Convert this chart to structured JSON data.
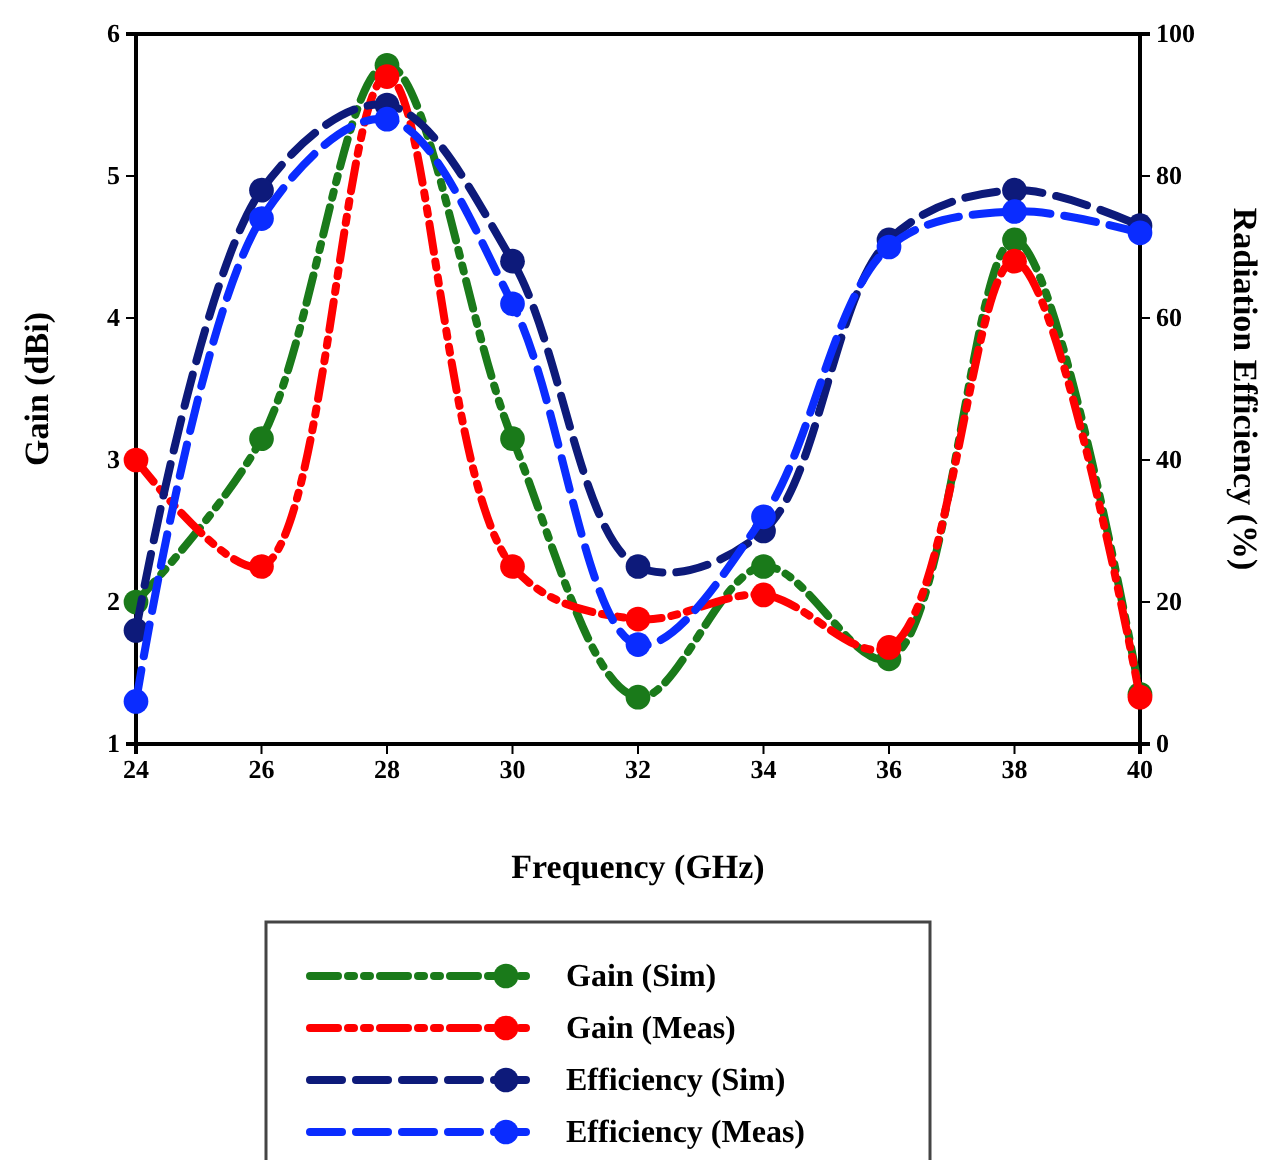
{
  "chart_data": {
    "type": "line",
    "xlabel": "Frequency (GHz)",
    "ylabel": "Gain (dBi)",
    "y2label": "Radiation Efficiency (%)",
    "x": [
      24,
      26,
      28,
      30,
      32,
      34,
      36,
      38,
      40
    ],
    "xlim": [
      24,
      40
    ],
    "xticks": [
      24,
      26,
      28,
      30,
      32,
      34,
      36,
      38,
      40
    ],
    "ylim": [
      1,
      6
    ],
    "yticks": [
      1,
      2,
      3,
      4,
      5,
      6
    ],
    "y2lim": [
      0,
      100
    ],
    "y2ticks": [
      0,
      20,
      40,
      60,
      80,
      100
    ],
    "grid": false,
    "legend": "bottom",
    "marker": "circle",
    "series": [
      {
        "name": "Gain (Sim)",
        "color": "#1a7a1a",
        "line_style": "dotted",
        "values": [
          2.0,
          3.15,
          5.78,
          3.15,
          1.33,
          2.25,
          1.6,
          4.55,
          1.35
        ]
      },
      {
        "name": "Gain (Meas)",
        "color": "#ff0000",
        "line_style": "dotted",
        "values": [
          3.0,
          2.25,
          5.7,
          2.25,
          1.88,
          2.05,
          1.68,
          4.4,
          1.33
        ]
      },
      {
        "name": "Efficiency (Sim)",
        "color": "#0d1a7a",
        "line_style": "dashed",
        "axis": "y2",
        "values": [
          16,
          78,
          90,
          68,
          25,
          30,
          71,
          78,
          73
        ]
      },
      {
        "name": "Efficiency (Meas)",
        "color": "#0a2cff",
        "line_style": "dashed",
        "axis": "y2",
        "values": [
          6,
          74,
          88,
          62,
          14,
          32,
          70,
          75,
          72
        ]
      }
    ]
  }
}
